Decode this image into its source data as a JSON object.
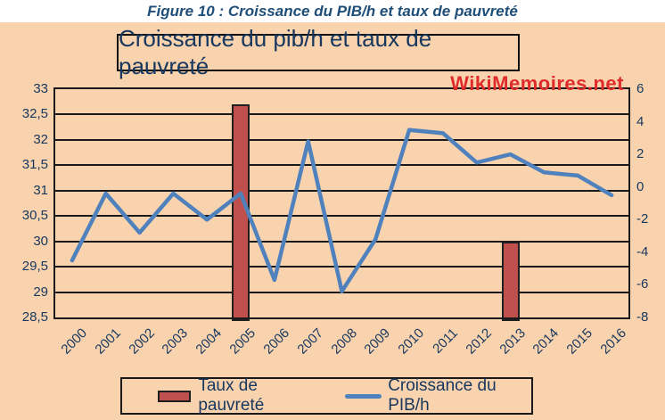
{
  "caption": "Figure 10 : Croissance du PIB/h et taux de pauvreté",
  "watermark": "WikiMemoires.net",
  "chart_data": {
    "type": "bar+line combo",
    "title": "Croissance du pib/h et taux de pauvreté",
    "categories": [
      "2000",
      "2001",
      "2002",
      "2003",
      "2004",
      "2005",
      "2006",
      "2007",
      "2008",
      "2009",
      "2010",
      "2011",
      "2012",
      "2013",
      "2014",
      "2015",
      "2016"
    ],
    "series": [
      {
        "name": "Taux de pauvreté",
        "type": "bar",
        "axis": "left",
        "color": "#C0504D",
        "values": [
          null,
          null,
          null,
          null,
          null,
          32.7,
          null,
          null,
          null,
          null,
          null,
          null,
          null,
          30,
          null,
          null,
          null
        ]
      },
      {
        "name": "Croissance du PIB/h",
        "type": "line",
        "axis": "right",
        "color": "#4F81BD",
        "values": [
          -4.5,
          -0.4,
          -2.8,
          -0.4,
          -2.0,
          -0.4,
          -5.7,
          2.8,
          -6.4,
          -3.2,
          3.5,
          3.3,
          1.5,
          2.0,
          0.9,
          0.7,
          -0.5
        ]
      }
    ],
    "left_axis": {
      "min": 28.5,
      "max": 33,
      "step": 0.5,
      "tick_labels": [
        "33",
        "32,5",
        "32",
        "31,5",
        "31",
        "30,5",
        "30",
        "29,5",
        "29",
        "28,5"
      ]
    },
    "right_axis": {
      "min": -8,
      "max": 6,
      "step": 2,
      "tick_labels": [
        "6",
        "4",
        "2",
        "0",
        "-2",
        "-4",
        "-6",
        "-8"
      ]
    },
    "grid": true,
    "legend_position": "bottom",
    "plot_background": "#F9D3AE"
  },
  "colors": {
    "background": "#F9D3AE",
    "text": "#17375E",
    "caption_text": "#1F4E79",
    "watermark": "#E02B2B",
    "grid": "#1A1A1A",
    "bar_fill": "#C0504D",
    "line_stroke": "#4F81BD"
  }
}
